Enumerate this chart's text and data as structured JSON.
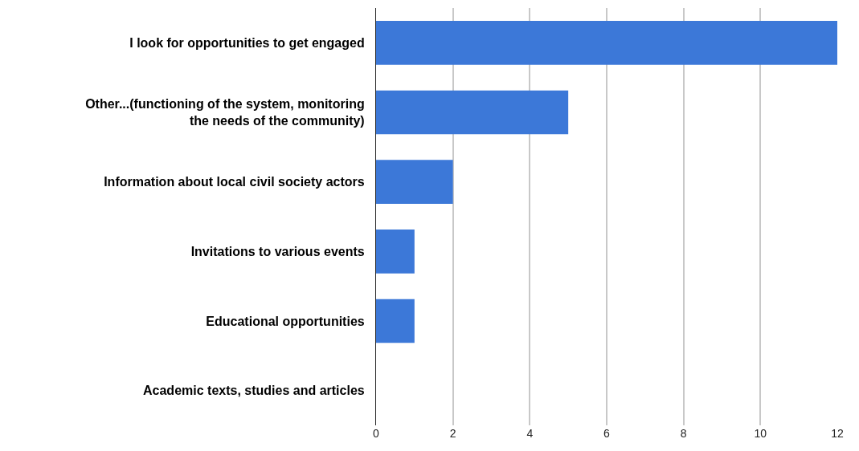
{
  "chart_data": {
    "type": "bar",
    "orientation": "horizontal",
    "categories": [
      "I look for opportunities to get engaged",
      "Other...(functioning of the system, monitoring the needs of the community)",
      "Information about local civil society actors",
      "Invitations to various events",
      "Educational opportunities",
      "Academic texts, studies and articles"
    ],
    "values": [
      12,
      5,
      2,
      1,
      1,
      0
    ],
    "color": "#3c78d8",
    "xlim": [
      0,
      12
    ],
    "xticks": [
      0,
      2,
      4,
      6,
      8,
      10,
      12
    ],
    "grid": "x"
  }
}
